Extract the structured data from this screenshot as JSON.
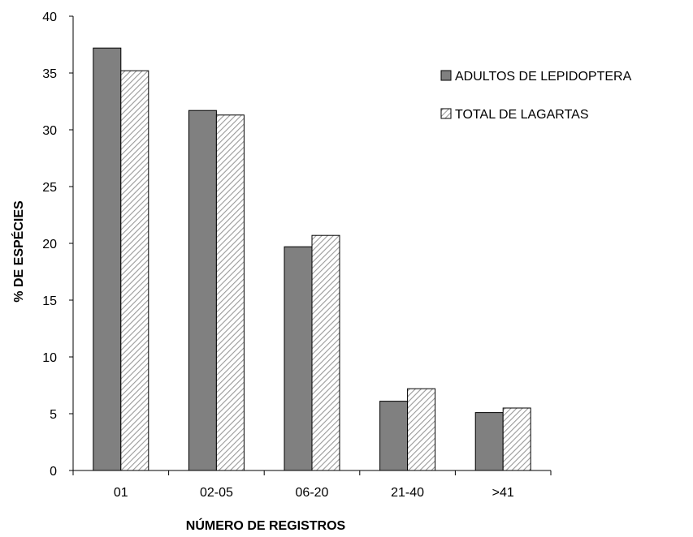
{
  "chart_data": {
    "type": "bar",
    "title": "",
    "xlabel": "NÚMERO DE REGISTROS",
    "ylabel": "% DE ESPÉCIES",
    "categories": [
      "01",
      "02-05",
      "06-20",
      "21-40",
      ">41"
    ],
    "ylim": [
      0,
      40
    ],
    "yticks": [
      0,
      5,
      10,
      15,
      20,
      25,
      30,
      35,
      40
    ],
    "grid": false,
    "legend_position": "top-right",
    "series": [
      {
        "name": "ADULTOS DE LEPIDOPTERA",
        "values": [
          37.2,
          31.7,
          19.7,
          6.1,
          5.1
        ],
        "fill": "#808080",
        "pattern": "solid"
      },
      {
        "name": "TOTAL DE LAGARTAS",
        "values": [
          35.2,
          31.3,
          20.7,
          7.2,
          5.5
        ],
        "fill": "#ffffff",
        "pattern": "diagonal-hatch"
      }
    ]
  }
}
